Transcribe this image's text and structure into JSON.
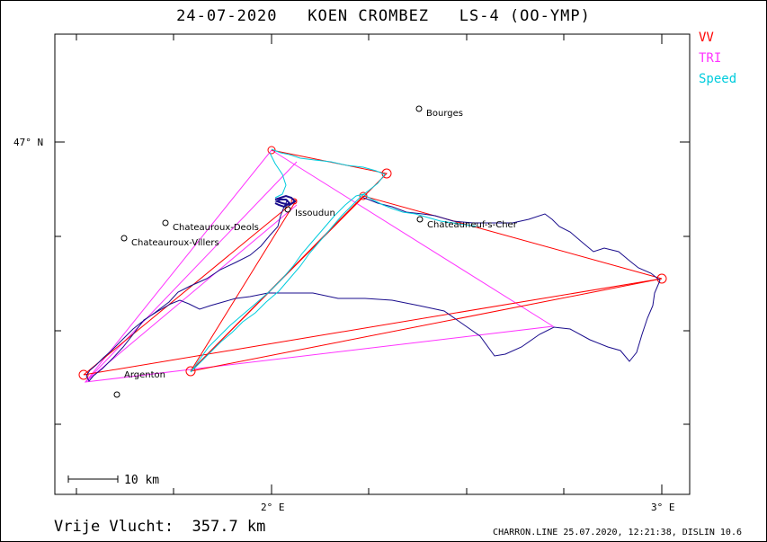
{
  "title": "24-07-2020   KOEN CROMBEZ   LS-4 (OO-YMP)",
  "legend": [
    {
      "label": "VV",
      "color": "#ff0000"
    },
    {
      "label": "TRI",
      "color": "#ff33ff"
    },
    {
      "label": "Speed",
      "color": "#00ccdd"
    }
  ],
  "axes": {
    "lat_label": "47° N",
    "lon_labels": [
      "2° E",
      "3° E"
    ]
  },
  "cities": [
    {
      "name": "Bourges"
    },
    {
      "name": "Issoudun"
    },
    {
      "name": "Chateauroux-Deols"
    },
    {
      "name": "Chateauroux-Villers"
    },
    {
      "name": "Chateauneuf-s-Cher"
    },
    {
      "name": "Argenton"
    }
  ],
  "scale_bar": {
    "label": "10 km"
  },
  "footer": {
    "distance": "Vrije Vlucht:  357.7 km",
    "info": "CHARRON.LINE 25.07.2020, 12:21:38, DISLIN 10.6"
  },
  "colors": {
    "track": "#1a0d8c",
    "speed": "#00ccdd",
    "vv": "#ff0000",
    "tri": "#ff33ff"
  }
}
